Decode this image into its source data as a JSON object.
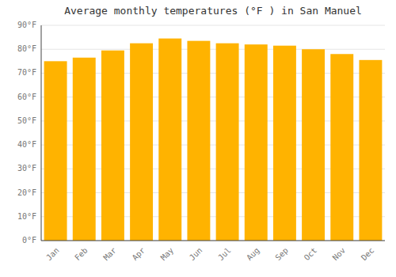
{
  "chart_data": {
    "type": "bar",
    "title": "Average monthly temperatures (°F ) in San Manuel",
    "categories": [
      "Jan",
      "Feb",
      "Mar",
      "Apr",
      "May",
      "Jun",
      "Jul",
      "Aug",
      "Sep",
      "Oct",
      "Nov",
      "Dec"
    ],
    "values": [
      75.0,
      76.5,
      79.5,
      82.5,
      84.5,
      83.5,
      82.5,
      82.0,
      81.5,
      80.0,
      78.0,
      75.5
    ],
    "color": "#FFB300",
    "ylim": [
      0,
      90
    ],
    "yticks": [
      {
        "value": 0,
        "label": "0°F"
      },
      {
        "value": 10,
        "label": "10°F"
      },
      {
        "value": 20,
        "label": "20°F"
      },
      {
        "value": 30,
        "label": "30°F"
      },
      {
        "value": 40,
        "label": "40°F"
      },
      {
        "value": 50,
        "label": "50°F"
      },
      {
        "value": 60,
        "label": "60°F"
      },
      {
        "value": 70,
        "label": "70°F"
      },
      {
        "value": 80,
        "label": "80°F"
      },
      {
        "value": 90,
        "label": "90°F"
      }
    ],
    "grid": true
  }
}
